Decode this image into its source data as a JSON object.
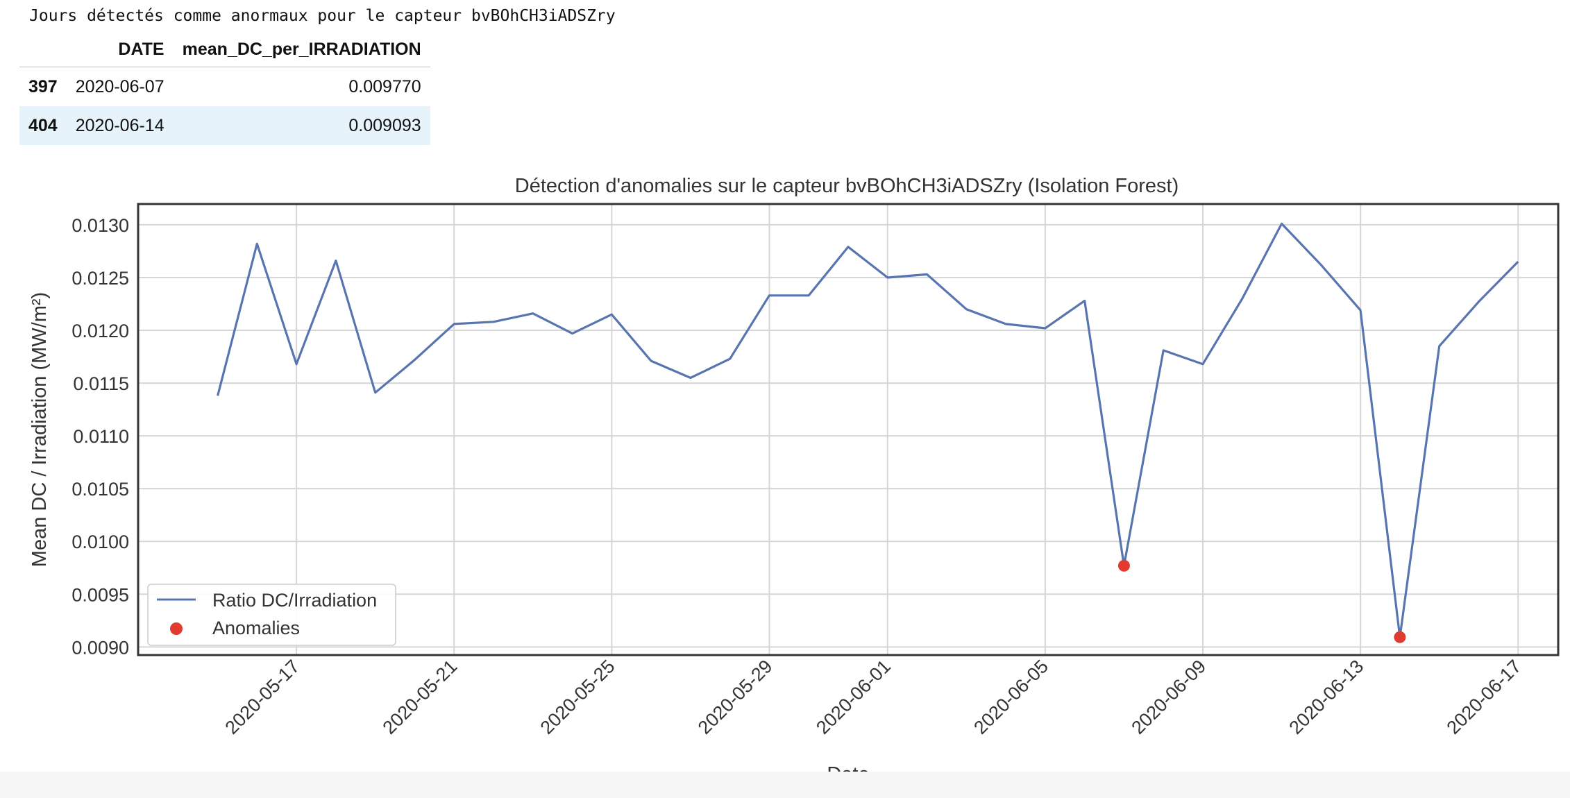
{
  "output_text": "Jours détectés comme anormaux pour le capteur bvBOhCH3iADSZry",
  "table": {
    "columns": [
      "DATE",
      "mean_DC_per_IRRADIATION"
    ],
    "rows": [
      {
        "index": "397",
        "date": "2020-06-07",
        "value": "0.009770"
      },
      {
        "index": "404",
        "date": "2020-06-14",
        "value": "0.009093"
      }
    ]
  },
  "chart_data": {
    "type": "line",
    "title": "Détection d'anomalies sur le capteur bvBOhCH3iADSZry (Isolation Forest)",
    "xlabel": "Date",
    "ylabel": "Mean DC / Irradiation (MW/m²)",
    "grid": true,
    "legend_placement": "lower-left",
    "x": [
      "2020-05-15",
      "2020-05-16",
      "2020-05-17",
      "2020-05-18",
      "2020-05-19",
      "2020-05-20",
      "2020-05-21",
      "2020-05-22",
      "2020-05-23",
      "2020-05-24",
      "2020-05-25",
      "2020-05-26",
      "2020-05-27",
      "2020-05-28",
      "2020-05-29",
      "2020-05-30",
      "2020-05-31",
      "2020-06-01",
      "2020-06-02",
      "2020-06-03",
      "2020-06-04",
      "2020-06-05",
      "2020-06-06",
      "2020-06-07",
      "2020-06-08",
      "2020-06-09",
      "2020-06-10",
      "2020-06-11",
      "2020-06-12",
      "2020-06-13",
      "2020-06-14",
      "2020-06-15",
      "2020-06-16",
      "2020-06-17"
    ],
    "xlim": [
      "2020-05-13",
      "2020-06-18"
    ],
    "ylim": [
      0.00893,
      0.01319
    ],
    "x_ticks": [
      "2020-05-17",
      "2020-05-21",
      "2020-05-25",
      "2020-05-29",
      "2020-06-01",
      "2020-06-05",
      "2020-06-09",
      "2020-06-13",
      "2020-06-17"
    ],
    "y_ticks": [
      "0.0090",
      "0.0095",
      "0.0100",
      "0.0105",
      "0.0110",
      "0.0115",
      "0.0120",
      "0.0125",
      "0.0130"
    ],
    "series": [
      {
        "name": "Ratio DC/Irradiation",
        "color": "#5875b0",
        "values": [
          0.01138,
          0.01282,
          0.01168,
          0.01266,
          0.01141,
          0.01172,
          0.01206,
          0.01208,
          0.01216,
          0.01197,
          0.01215,
          0.01171,
          0.01155,
          0.01173,
          0.01233,
          0.01233,
          0.01279,
          0.0125,
          0.01253,
          0.0122,
          0.01206,
          0.01202,
          0.01228,
          0.00977,
          0.01181,
          0.01168,
          0.0123,
          0.01301,
          0.01262,
          0.01219,
          0.009093,
          0.01185,
          0.01227,
          0.01265
        ]
      },
      {
        "name": "Anomalies",
        "type": "scatter",
        "color": "#e03b2e",
        "x": [
          "2020-06-07",
          "2020-06-14"
        ],
        "values": [
          0.00977,
          0.009093
        ]
      }
    ]
  }
}
